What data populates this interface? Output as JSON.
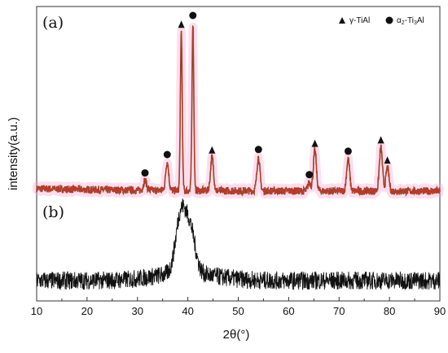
{
  "chart_data": {
    "type": "line",
    "xlabel": "2θ(°)",
    "ylabel": "intensity(a.u.)",
    "xlim": [
      10,
      90
    ],
    "xticks": [
      10,
      20,
      30,
      40,
      50,
      60,
      70,
      80,
      90
    ],
    "panel_labels": [
      "(a)",
      "(b)"
    ],
    "colors": {
      "pattern_a": "#c0392b",
      "pattern_a_base": "#6b4a1a",
      "pattern_b": "#111111",
      "glow": "#ff9fcf"
    },
    "legend": {
      "gamma": {
        "symbol": "triangle",
        "text": "γ-TiAl"
      },
      "alpha2": {
        "symbol": "circle",
        "prefix": "α",
        "sub1": "2",
        "mid": "-Ti",
        "sub2": "3",
        "suffix": "Al"
      }
    },
    "series": [
      {
        "name": "(a)",
        "baseline": 0.1,
        "peaks": [
          {
            "x": 31.5,
            "h": 0.06,
            "marker": "circle"
          },
          {
            "x": 35.9,
            "h": 0.17,
            "marker": "circle"
          },
          {
            "x": 38.7,
            "h": 0.95,
            "marker": "triangle"
          },
          {
            "x": 41.0,
            "h": 1.0,
            "marker": "circle"
          },
          {
            "x": 44.8,
            "h": 0.2,
            "marker": "triangle"
          },
          {
            "x": 54.0,
            "h": 0.2,
            "marker": "circle"
          },
          {
            "x": 64.1,
            "h": 0.05,
            "marker": "circle"
          },
          {
            "x": 65.2,
            "h": 0.24,
            "marker": "triangle"
          },
          {
            "x": 71.8,
            "h": 0.19,
            "marker": "circle"
          },
          {
            "x": 78.3,
            "h": 0.26,
            "marker": "triangle"
          },
          {
            "x": 79.6,
            "h": 0.14,
            "marker": "triangle"
          }
        ]
      },
      {
        "name": "(b)",
        "baseline": 0.12,
        "peaks": [
          {
            "x": 38.6,
            "h": 0.7
          },
          {
            "x": 40.5,
            "h": 0.5
          }
        ]
      }
    ]
  }
}
